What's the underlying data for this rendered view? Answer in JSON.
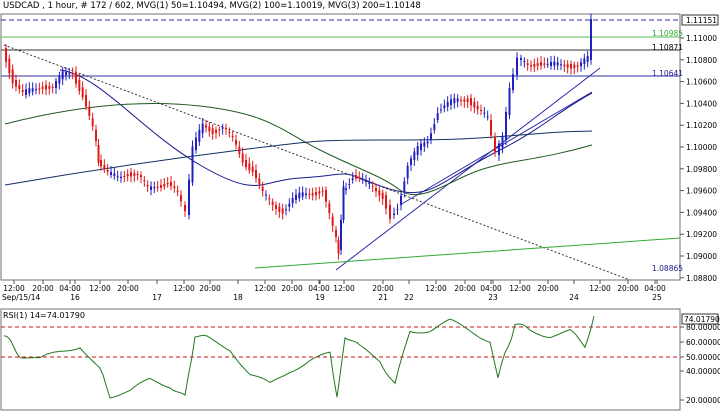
{
  "header": {
    "title": "USDCAD , 1 hour, # 172 / 602, MVG(1) 50=1.10494, MVG(2) 100=1.10019, MVG(3) 200=1.10148"
  },
  "rsi": {
    "label": "RSI(1) 14=74.01790",
    "current_tag": "74.01790",
    "axis_labels": [
      "80.00000",
      "60.00000",
      "50.00000",
      "40.00000",
      "20.00000"
    ]
  },
  "price_axis": {
    "labels": [
      "1.11000",
      "1.10800",
      "1.10600",
      "1.10400",
      "1.10200",
      "1.10000",
      "1.09800",
      "1.09600",
      "1.09400",
      "1.09200",
      "1.09000",
      "1.08800"
    ],
    "tags": [
      "1.11151",
      "1.10985",
      "1.10871",
      "1.10641",
      "1.08865"
    ]
  },
  "time_axis": {
    "start_label": "Sep/15/14",
    "labels": [
      "12:00",
      "20:00",
      "04:00",
      "16",
      "12:00",
      "20:00",
      "17",
      "12:00",
      "20:00",
      "18",
      "12:00",
      "20:00",
      "04:00",
      "19",
      "12:00",
      "20:00",
      "21",
      "22",
      "12:00",
      "20:00",
      "04:00",
      "23",
      "12:00",
      "20:00",
      "24",
      "12:00",
      "20:00",
      "04:00",
      "25"
    ]
  },
  "colors": {
    "bull": "#2020c0",
    "bear": "#e01818",
    "ma50": "#1a1a90",
    "ma100": "#1e5a1e",
    "ma200": "#103060",
    "rsi_line": "#227722",
    "green_level": "#33aa33",
    "trendline": "#2a2aa8",
    "red_dash": "#d01010"
  }
}
